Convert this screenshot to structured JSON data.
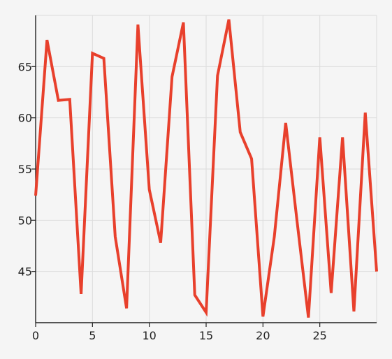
{
  "chart_data": {
    "type": "line",
    "title": "",
    "xlabel": "",
    "ylabel": "",
    "xlim": [
      0,
      30
    ],
    "ylim": [
      40,
      70
    ],
    "grid": true,
    "x_ticks": [
      0,
      5,
      10,
      15,
      20,
      25
    ],
    "y_ticks": [
      45,
      50,
      55,
      60,
      65
    ],
    "series": [
      {
        "color": "#e8402c",
        "x": [
          0,
          1,
          2,
          3,
          4,
          5,
          6,
          7,
          8,
          9,
          10,
          11,
          12,
          13,
          14,
          15,
          16,
          17,
          18,
          19,
          20,
          21,
          22,
          23,
          24,
          25,
          26,
          27,
          28,
          29,
          30
        ],
        "y": [
          52.4,
          67.6,
          61.7,
          61.8,
          42.8,
          66.3,
          65.8,
          48.4,
          41.4,
          69.1,
          53.0,
          47.8,
          64.0,
          69.3,
          42.7,
          41.0,
          64.1,
          69.6,
          58.6,
          56.0,
          40.6,
          48.4,
          59.5,
          49.9,
          40.5,
          58.1,
          42.9,
          58.1,
          41.1,
          60.5,
          45.0
        ]
      }
    ]
  }
}
